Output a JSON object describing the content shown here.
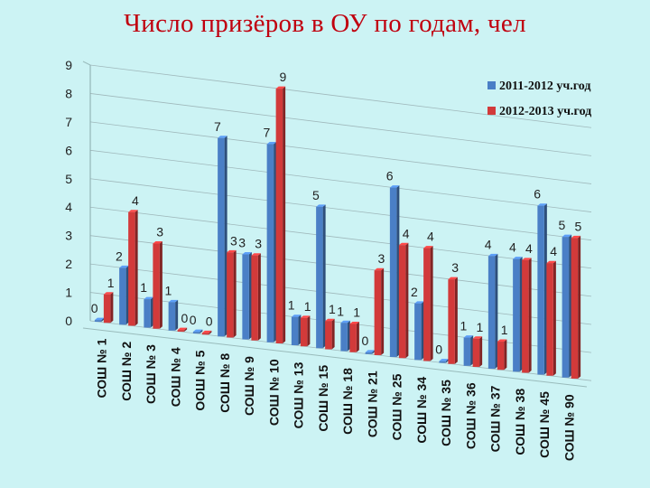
{
  "slide": {
    "title": "Число призёров в ОУ по годам, чел"
  },
  "chart_data": {
    "type": "bar",
    "title": "Число призёров в ОУ по годам, чел",
    "categories": [
      "СОШ № 1",
      "СОШ № 2",
      "СОШ № 3",
      "СОШ № 4",
      "ООШ № 5",
      "СОШ № 8",
      "СОШ № 9",
      "СОШ № 10",
      "СОШ № 13",
      "СОШ № 15",
      "СОШ № 18",
      "СОШ № 21",
      "СОШ № 25",
      "СОШ № 34",
      "СОШ № 35",
      "СОШ № 36",
      "СОШ № 37",
      "СОШ № 38",
      "СОШ № 45",
      "СОШ № 90"
    ],
    "series": [
      {
        "name": "2011-2012 уч.год",
        "color": "#4a7fc6",
        "values": [
          0,
          2,
          1,
          1,
          0,
          7,
          3,
          7,
          1,
          5,
          1,
          0,
          6,
          2,
          0,
          1,
          4,
          4,
          6,
          5
        ]
      },
      {
        "name": "2012-2013 уч.год",
        "color": "#d23a3a",
        "values": [
          1,
          4,
          3,
          0,
          0,
          3,
          3,
          9,
          1,
          1,
          1,
          3,
          4,
          4,
          3,
          1,
          1,
          4,
          4,
          5
        ]
      }
    ],
    "ylim": [
      0,
      9
    ],
    "yticks": [
      0,
      1,
      2,
      3,
      4,
      5,
      6,
      7,
      8,
      9
    ],
    "xlabel": "",
    "ylabel": "",
    "grid": true,
    "legend": "top-right"
  }
}
